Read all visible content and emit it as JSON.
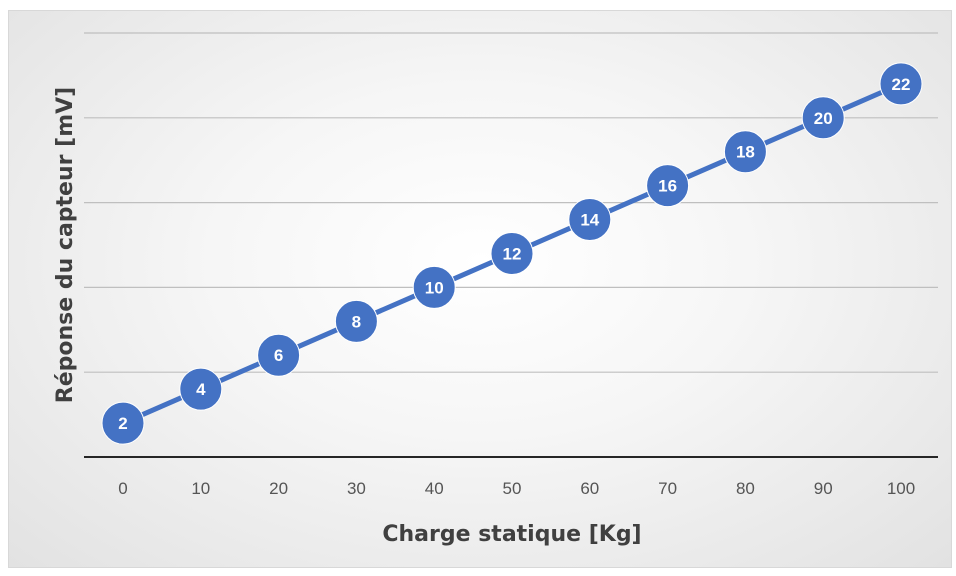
{
  "chart_data": {
    "type": "line",
    "title": "",
    "xlabel": "Charge statique [Kg]",
    "ylabel": "Réponse du capteur [mV]",
    "x": [
      0,
      10,
      20,
      30,
      40,
      50,
      60,
      70,
      80,
      90,
      100
    ],
    "x_tick_labels": [
      "0",
      "10",
      "20",
      "30",
      "40",
      "50",
      "60",
      "70",
      "80",
      "90",
      "100"
    ],
    "series": [
      {
        "values": [
          2,
          4,
          6,
          8,
          10,
          12,
          14,
          16,
          18,
          20,
          22
        ],
        "data_labels": [
          "2",
          "4",
          "6",
          "8",
          "10",
          "12",
          "14",
          "16",
          "18",
          "20",
          "22"
        ],
        "color": "#4472C4"
      }
    ],
    "ylim": [
      0,
      25
    ],
    "y_tick_labels_visible": false,
    "grid": "horizontal",
    "legend": "none",
    "colors": {
      "series": "#4472C4",
      "gridline": "#bfbfbf",
      "axis": "#262626",
      "tick_text": "#555555",
      "title_text": "#404040"
    }
  }
}
